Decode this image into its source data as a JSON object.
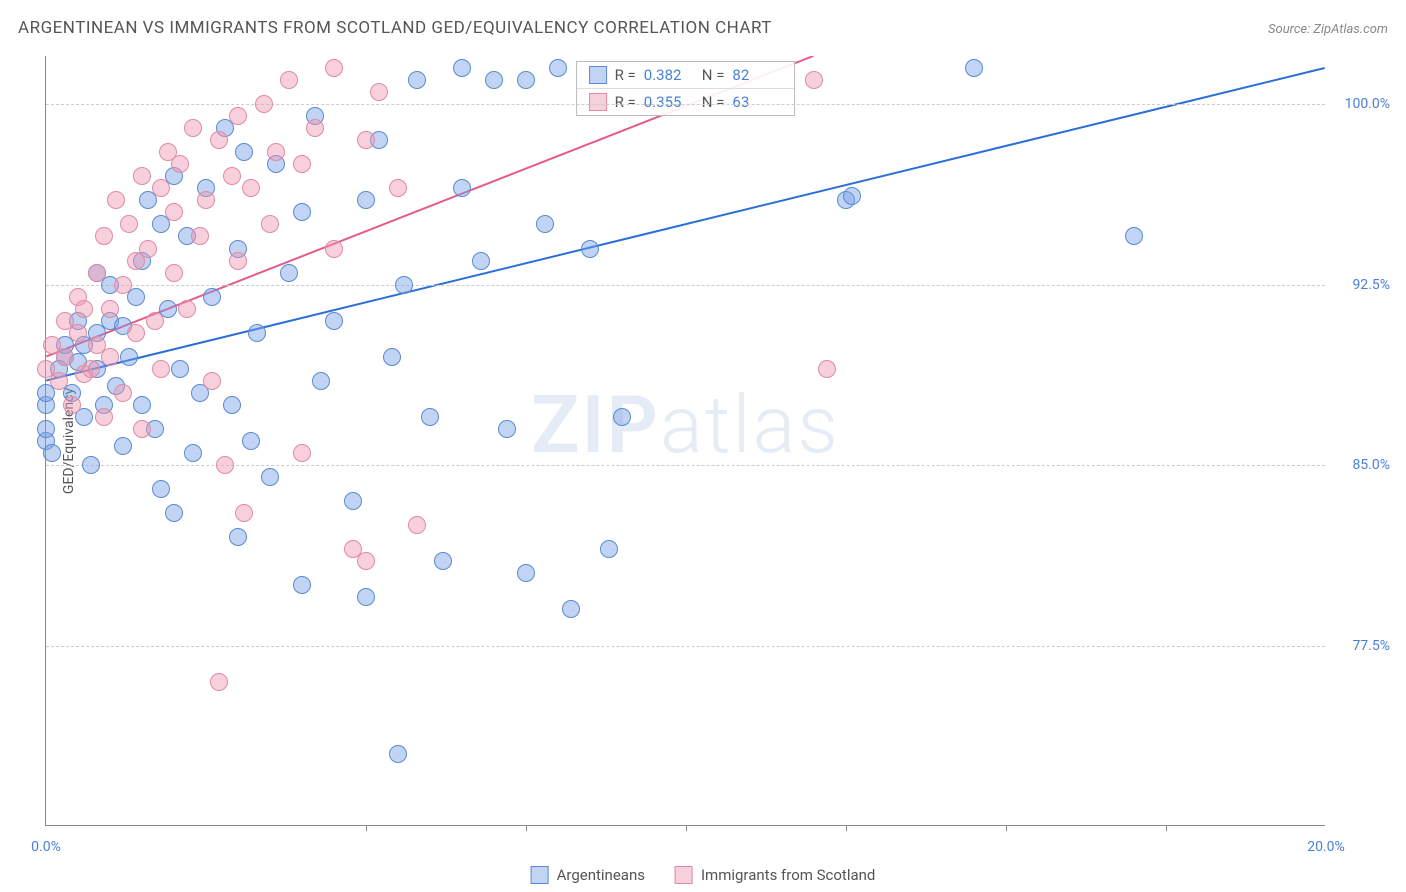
{
  "title": "ARGENTINEAN VS IMMIGRANTS FROM SCOTLAND GED/EQUIVALENCY CORRELATION CHART",
  "source": "Source: ZipAtlas.com",
  "watermark_a": "ZIP",
  "watermark_b": "atlas",
  "ylabel": "GED/Equivalency",
  "chart": {
    "type": "scatter",
    "xlim": [
      0,
      20
    ],
    "ylim": [
      70,
      102
    ],
    "xtick_labels": [
      "0.0%",
      "20.0%"
    ],
    "xtick_positions": [
      0,
      20
    ],
    "xtick_minor": [
      5,
      7.5,
      10,
      12.5,
      15,
      17.5
    ],
    "ytick_labels": [
      "77.5%",
      "85.0%",
      "92.5%",
      "100.0%"
    ],
    "ytick_positions": [
      77.5,
      85.0,
      92.5,
      100.0
    ],
    "background_color": "#ffffff",
    "grid_color": "#cccccc",
    "axis_color": "#888888",
    "marker_size": 18,
    "trend_line_width": 2
  },
  "series": [
    {
      "name": "Argentineans",
      "fill": "rgba(120,160,230,0.45)",
      "stroke": "#5a8ad0",
      "line_color": "#2b6fd6",
      "r": "0.382",
      "n": "82",
      "trend": {
        "x1": 0,
        "y1": 88.5,
        "x2": 20,
        "y2": 101.5
      },
      "points": [
        [
          0.0,
          86.0
        ],
        [
          0.0,
          86.5
        ],
        [
          0.0,
          87.5
        ],
        [
          0.0,
          88.0
        ],
        [
          0.1,
          85.5
        ],
        [
          0.2,
          89.0
        ],
        [
          0.3,
          89.5
        ],
        [
          0.3,
          90.0
        ],
        [
          0.4,
          88.0
        ],
        [
          0.5,
          89.3
        ],
        [
          0.5,
          91.0
        ],
        [
          0.6,
          87.0
        ],
        [
          0.6,
          90.0
        ],
        [
          0.7,
          85.0
        ],
        [
          0.8,
          89.0
        ],
        [
          0.8,
          90.5
        ],
        [
          0.8,
          93.0
        ],
        [
          0.9,
          87.5
        ],
        [
          1.0,
          91.0
        ],
        [
          1.0,
          92.5
        ],
        [
          1.1,
          88.3
        ],
        [
          1.2,
          85.8
        ],
        [
          1.2,
          90.8
        ],
        [
          1.3,
          89.5
        ],
        [
          1.4,
          92.0
        ],
        [
          1.5,
          87.5
        ],
        [
          1.5,
          93.5
        ],
        [
          1.6,
          96.0
        ],
        [
          1.7,
          86.5
        ],
        [
          1.8,
          84.0
        ],
        [
          1.8,
          95.0
        ],
        [
          1.9,
          91.5
        ],
        [
          2.0,
          83.0
        ],
        [
          2.0,
          97.0
        ],
        [
          2.1,
          89.0
        ],
        [
          2.2,
          94.5
        ],
        [
          2.3,
          85.5
        ],
        [
          2.4,
          88.0
        ],
        [
          2.5,
          96.5
        ],
        [
          2.6,
          92.0
        ],
        [
          2.8,
          99.0
        ],
        [
          2.9,
          87.5
        ],
        [
          3.0,
          82.0
        ],
        [
          3.0,
          94.0
        ],
        [
          3.1,
          98.0
        ],
        [
          3.2,
          86.0
        ],
        [
          3.3,
          90.5
        ],
        [
          3.5,
          84.5
        ],
        [
          3.6,
          97.5
        ],
        [
          3.8,
          93.0
        ],
        [
          4.0,
          80.0
        ],
        [
          4.0,
          95.5
        ],
        [
          4.2,
          99.5
        ],
        [
          4.3,
          88.5
        ],
        [
          4.5,
          91.0
        ],
        [
          4.8,
          83.5
        ],
        [
          5.0,
          96.0
        ],
        [
          5.0,
          79.5
        ],
        [
          5.2,
          98.5
        ],
        [
          5.4,
          89.5
        ],
        [
          5.5,
          73.0
        ],
        [
          5.6,
          92.5
        ],
        [
          5.8,
          101.0
        ],
        [
          6.0,
          87.0
        ],
        [
          6.2,
          81.0
        ],
        [
          6.5,
          96.5
        ],
        [
          6.5,
          101.5
        ],
        [
          6.8,
          93.5
        ],
        [
          7.0,
          101.0
        ],
        [
          7.2,
          86.5
        ],
        [
          7.5,
          80.5
        ],
        [
          7.5,
          101.0
        ],
        [
          7.8,
          95.0
        ],
        [
          8.0,
          101.5
        ],
        [
          8.2,
          79.0
        ],
        [
          8.5,
          94.0
        ],
        [
          8.8,
          81.5
        ],
        [
          9.0,
          87.0
        ],
        [
          12.5,
          96.0
        ],
        [
          12.6,
          96.2
        ],
        [
          17.0,
          94.5
        ],
        [
          14.5,
          101.5
        ]
      ]
    },
    {
      "name": "Immigrants from Scotland",
      "fill": "rgba(240,150,175,0.45)",
      "stroke": "#e08aa5",
      "line_color": "#e55a8a",
      "r": "0.355",
      "n": "63",
      "trend": {
        "x1": 0,
        "y1": 89.5,
        "x2": 12,
        "y2": 102
      },
      "points": [
        [
          0.0,
          89.0
        ],
        [
          0.1,
          90.0
        ],
        [
          0.2,
          88.5
        ],
        [
          0.3,
          91.0
        ],
        [
          0.3,
          89.5
        ],
        [
          0.4,
          87.5
        ],
        [
          0.5,
          90.5
        ],
        [
          0.5,
          92.0
        ],
        [
          0.6,
          88.8
        ],
        [
          0.6,
          91.5
        ],
        [
          0.7,
          89.0
        ],
        [
          0.8,
          93.0
        ],
        [
          0.8,
          90.0
        ],
        [
          0.9,
          87.0
        ],
        [
          0.9,
          94.5
        ],
        [
          1.0,
          91.5
        ],
        [
          1.0,
          89.5
        ],
        [
          1.1,
          96.0
        ],
        [
          1.2,
          92.5
        ],
        [
          1.2,
          88.0
        ],
        [
          1.3,
          95.0
        ],
        [
          1.4,
          90.5
        ],
        [
          1.4,
          93.5
        ],
        [
          1.5,
          97.0
        ],
        [
          1.5,
          86.5
        ],
        [
          1.6,
          94.0
        ],
        [
          1.7,
          91.0
        ],
        [
          1.8,
          96.5
        ],
        [
          1.8,
          89.0
        ],
        [
          1.9,
          98.0
        ],
        [
          2.0,
          93.0
        ],
        [
          2.0,
          95.5
        ],
        [
          2.1,
          97.5
        ],
        [
          2.2,
          91.5
        ],
        [
          2.3,
          99.0
        ],
        [
          2.4,
          94.5
        ],
        [
          2.5,
          96.0
        ],
        [
          2.6,
          88.5
        ],
        [
          2.7,
          98.5
        ],
        [
          2.8,
          85.0
        ],
        [
          2.9,
          97.0
        ],
        [
          3.0,
          99.5
        ],
        [
          3.0,
          93.5
        ],
        [
          3.1,
          83.0
        ],
        [
          3.2,
          96.5
        ],
        [
          3.4,
          100.0
        ],
        [
          3.5,
          95.0
        ],
        [
          3.6,
          98.0
        ],
        [
          3.8,
          101.0
        ],
        [
          4.0,
          97.5
        ],
        [
          4.0,
          85.5
        ],
        [
          4.2,
          99.0
        ],
        [
          4.5,
          101.5
        ],
        [
          4.5,
          94.0
        ],
        [
          4.8,
          81.5
        ],
        [
          5.0,
          98.5
        ],
        [
          5.0,
          81.0
        ],
        [
          5.2,
          100.5
        ],
        [
          5.5,
          96.5
        ],
        [
          5.8,
          82.5
        ],
        [
          2.7,
          76.0
        ],
        [
          12.0,
          101.0
        ],
        [
          12.2,
          89.0
        ]
      ]
    }
  ],
  "bottom_legend": [
    {
      "label": "Argentineans",
      "fill": "rgba(120,160,230,0.45)",
      "stroke": "#5a8ad0"
    },
    {
      "label": "Immigrants from Scotland",
      "fill": "rgba(240,150,175,0.45)",
      "stroke": "#e08aa5"
    }
  ]
}
